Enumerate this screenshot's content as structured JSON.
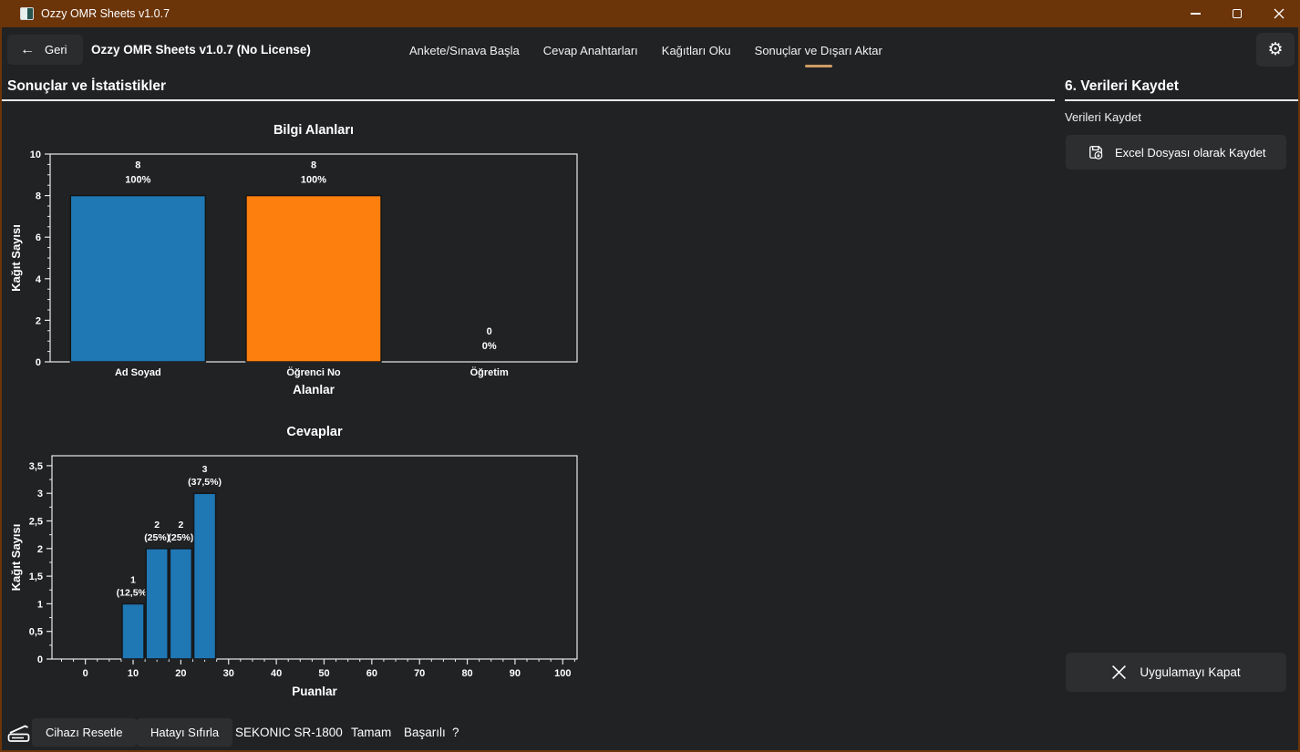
{
  "window": {
    "title": "Ozzy OMR Sheets v1.0.7"
  },
  "icons": {
    "back": "←",
    "settings": "⚙"
  },
  "nav": {
    "back_label": "Geri",
    "app_title": "Ozzy OMR Sheets v1.0.7 (No License)",
    "items": [
      {
        "label": "Ankete/Sınava Başla",
        "active": false
      },
      {
        "label": "Cevap Anahtarları",
        "active": false
      },
      {
        "label": "Kağıtları Oku",
        "active": false
      },
      {
        "label": "Sonuçlar ve Dışarı Aktar",
        "active": true
      }
    ]
  },
  "content": {
    "heading": "Sonuçlar ve İstatistikler"
  },
  "sidebar": {
    "heading": "6. Verileri Kaydet",
    "label": "Verileri Kaydet",
    "excel_button": "Excel Dosyası olarak Kaydet",
    "quit_button": "Uygulamayı Kapat"
  },
  "statusbar": {
    "reset_device": "Cihazı Resetle",
    "reset_error": "Hatayı Sıfırla",
    "device": "SEKONIC SR-1800",
    "status": "Tamam",
    "result": "Başarılı",
    "help": "?"
  },
  "colors": {
    "titlebar": "#6b3409",
    "accent_underline": "#cf9c64",
    "bar_blue": "#1f77b4",
    "bar_orange": "#fd7f0e",
    "axis": "#e8e8e8",
    "background": "#212224",
    "button": "#2d2e30"
  },
  "chart_data": [
    {
      "type": "bar",
      "title": "Bilgi Alanları",
      "xlabel": "Alanlar",
      "ylabel": "Kağıt Sayısı",
      "categories": [
        "Ad Soyad",
        "Öğrenci No",
        "Öğretim"
      ],
      "values": [
        8,
        8,
        0
      ],
      "bar_labels": [
        [
          "8",
          "100%"
        ],
        [
          "8",
          "100%"
        ],
        [
          "0",
          "0%"
        ]
      ],
      "bar_colors": [
        "#1f77b4",
        "#fd7f0e",
        "#1f77b4"
      ],
      "ylim": [
        0,
        10
      ],
      "ytick_step": 2,
      "grid": false,
      "legend": null
    },
    {
      "type": "bar",
      "title": "Cevaplar",
      "xlabel": "Puanlar",
      "ylabel": "Kağıt Sayısı",
      "x": [
        10,
        15,
        20,
        25
      ],
      "values": [
        1,
        2,
        2,
        3
      ],
      "bar_labels": [
        [
          "1",
          "(12,5%)"
        ],
        [
          "2",
          "(25%)"
        ],
        [
          "2",
          "(25%)"
        ],
        [
          "3",
          "(37,5%)"
        ]
      ],
      "bar_color": "#1f77b4",
      "bar_width": 4.6,
      "xlim": [
        -7,
        103
      ],
      "xticks": [
        0,
        10,
        20,
        30,
        40,
        50,
        60,
        70,
        80,
        90,
        100
      ],
      "ylim": [
        0,
        3.68
      ],
      "ytick_labels": [
        "0",
        "0,5",
        "1",
        "1,5",
        "2",
        "2,5",
        "3",
        "3,5"
      ],
      "ytick_values": [
        0,
        0.5,
        1,
        1.5,
        2,
        2.5,
        3,
        3.5
      ],
      "grid": false,
      "legend": null
    }
  ]
}
